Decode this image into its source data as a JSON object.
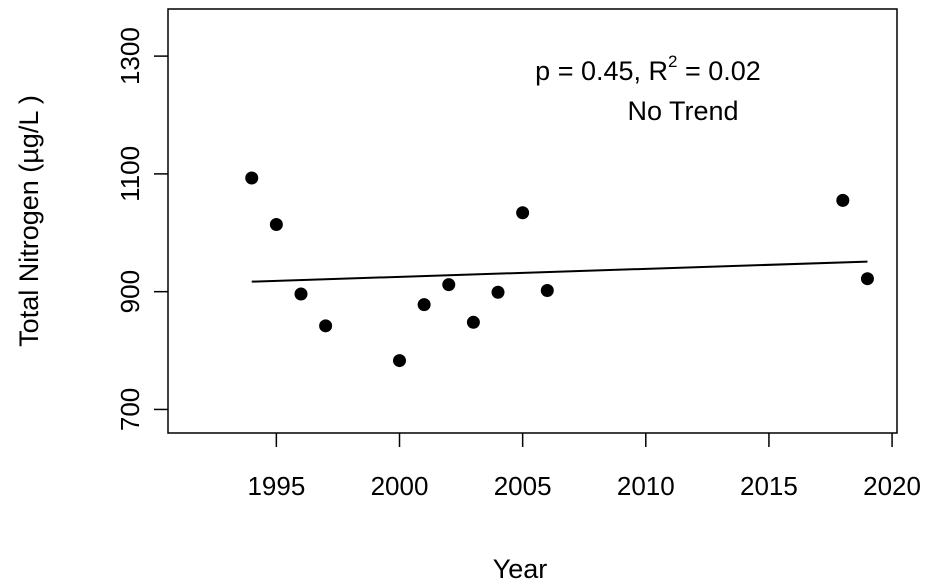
{
  "chart_data": {
    "type": "scatter",
    "title": "",
    "xlabel": "Year",
    "ylabel": "Total Nitrogen (µg/L )",
    "xlim": [
      1990.6,
      2020.2
    ],
    "ylim": [
      660,
      1380
    ],
    "xticks": [
      1995,
      2000,
      2005,
      2010,
      2015,
      2020
    ],
    "yticks": [
      700,
      900,
      1100,
      1300
    ],
    "grid": false,
    "legend": "none",
    "point_color": "#000000",
    "points": [
      {
        "x": 1994,
        "y": 1093
      },
      {
        "x": 1995,
        "y": 1014
      },
      {
        "x": 1996,
        "y": 896
      },
      {
        "x": 1997,
        "y": 842
      },
      {
        "x": 2000,
        "y": 783
      },
      {
        "x": 2001,
        "y": 878
      },
      {
        "x": 2002,
        "y": 912
      },
      {
        "x": 2003,
        "y": 848
      },
      {
        "x": 2004,
        "y": 899
      },
      {
        "x": 2005,
        "y": 1034
      },
      {
        "x": 2006,
        "y": 902
      },
      {
        "x": 2018,
        "y": 1055
      },
      {
        "x": 2019,
        "y": 922
      }
    ],
    "trend_line": {
      "x": [
        1994,
        2019
      ],
      "y": [
        917,
        951
      ]
    },
    "annotations": {
      "stats_prefix": "p = 0.45, R",
      "stats_sup": "2",
      "stats_suffix": " = 0.02",
      "trend": "No Trend"
    }
  }
}
